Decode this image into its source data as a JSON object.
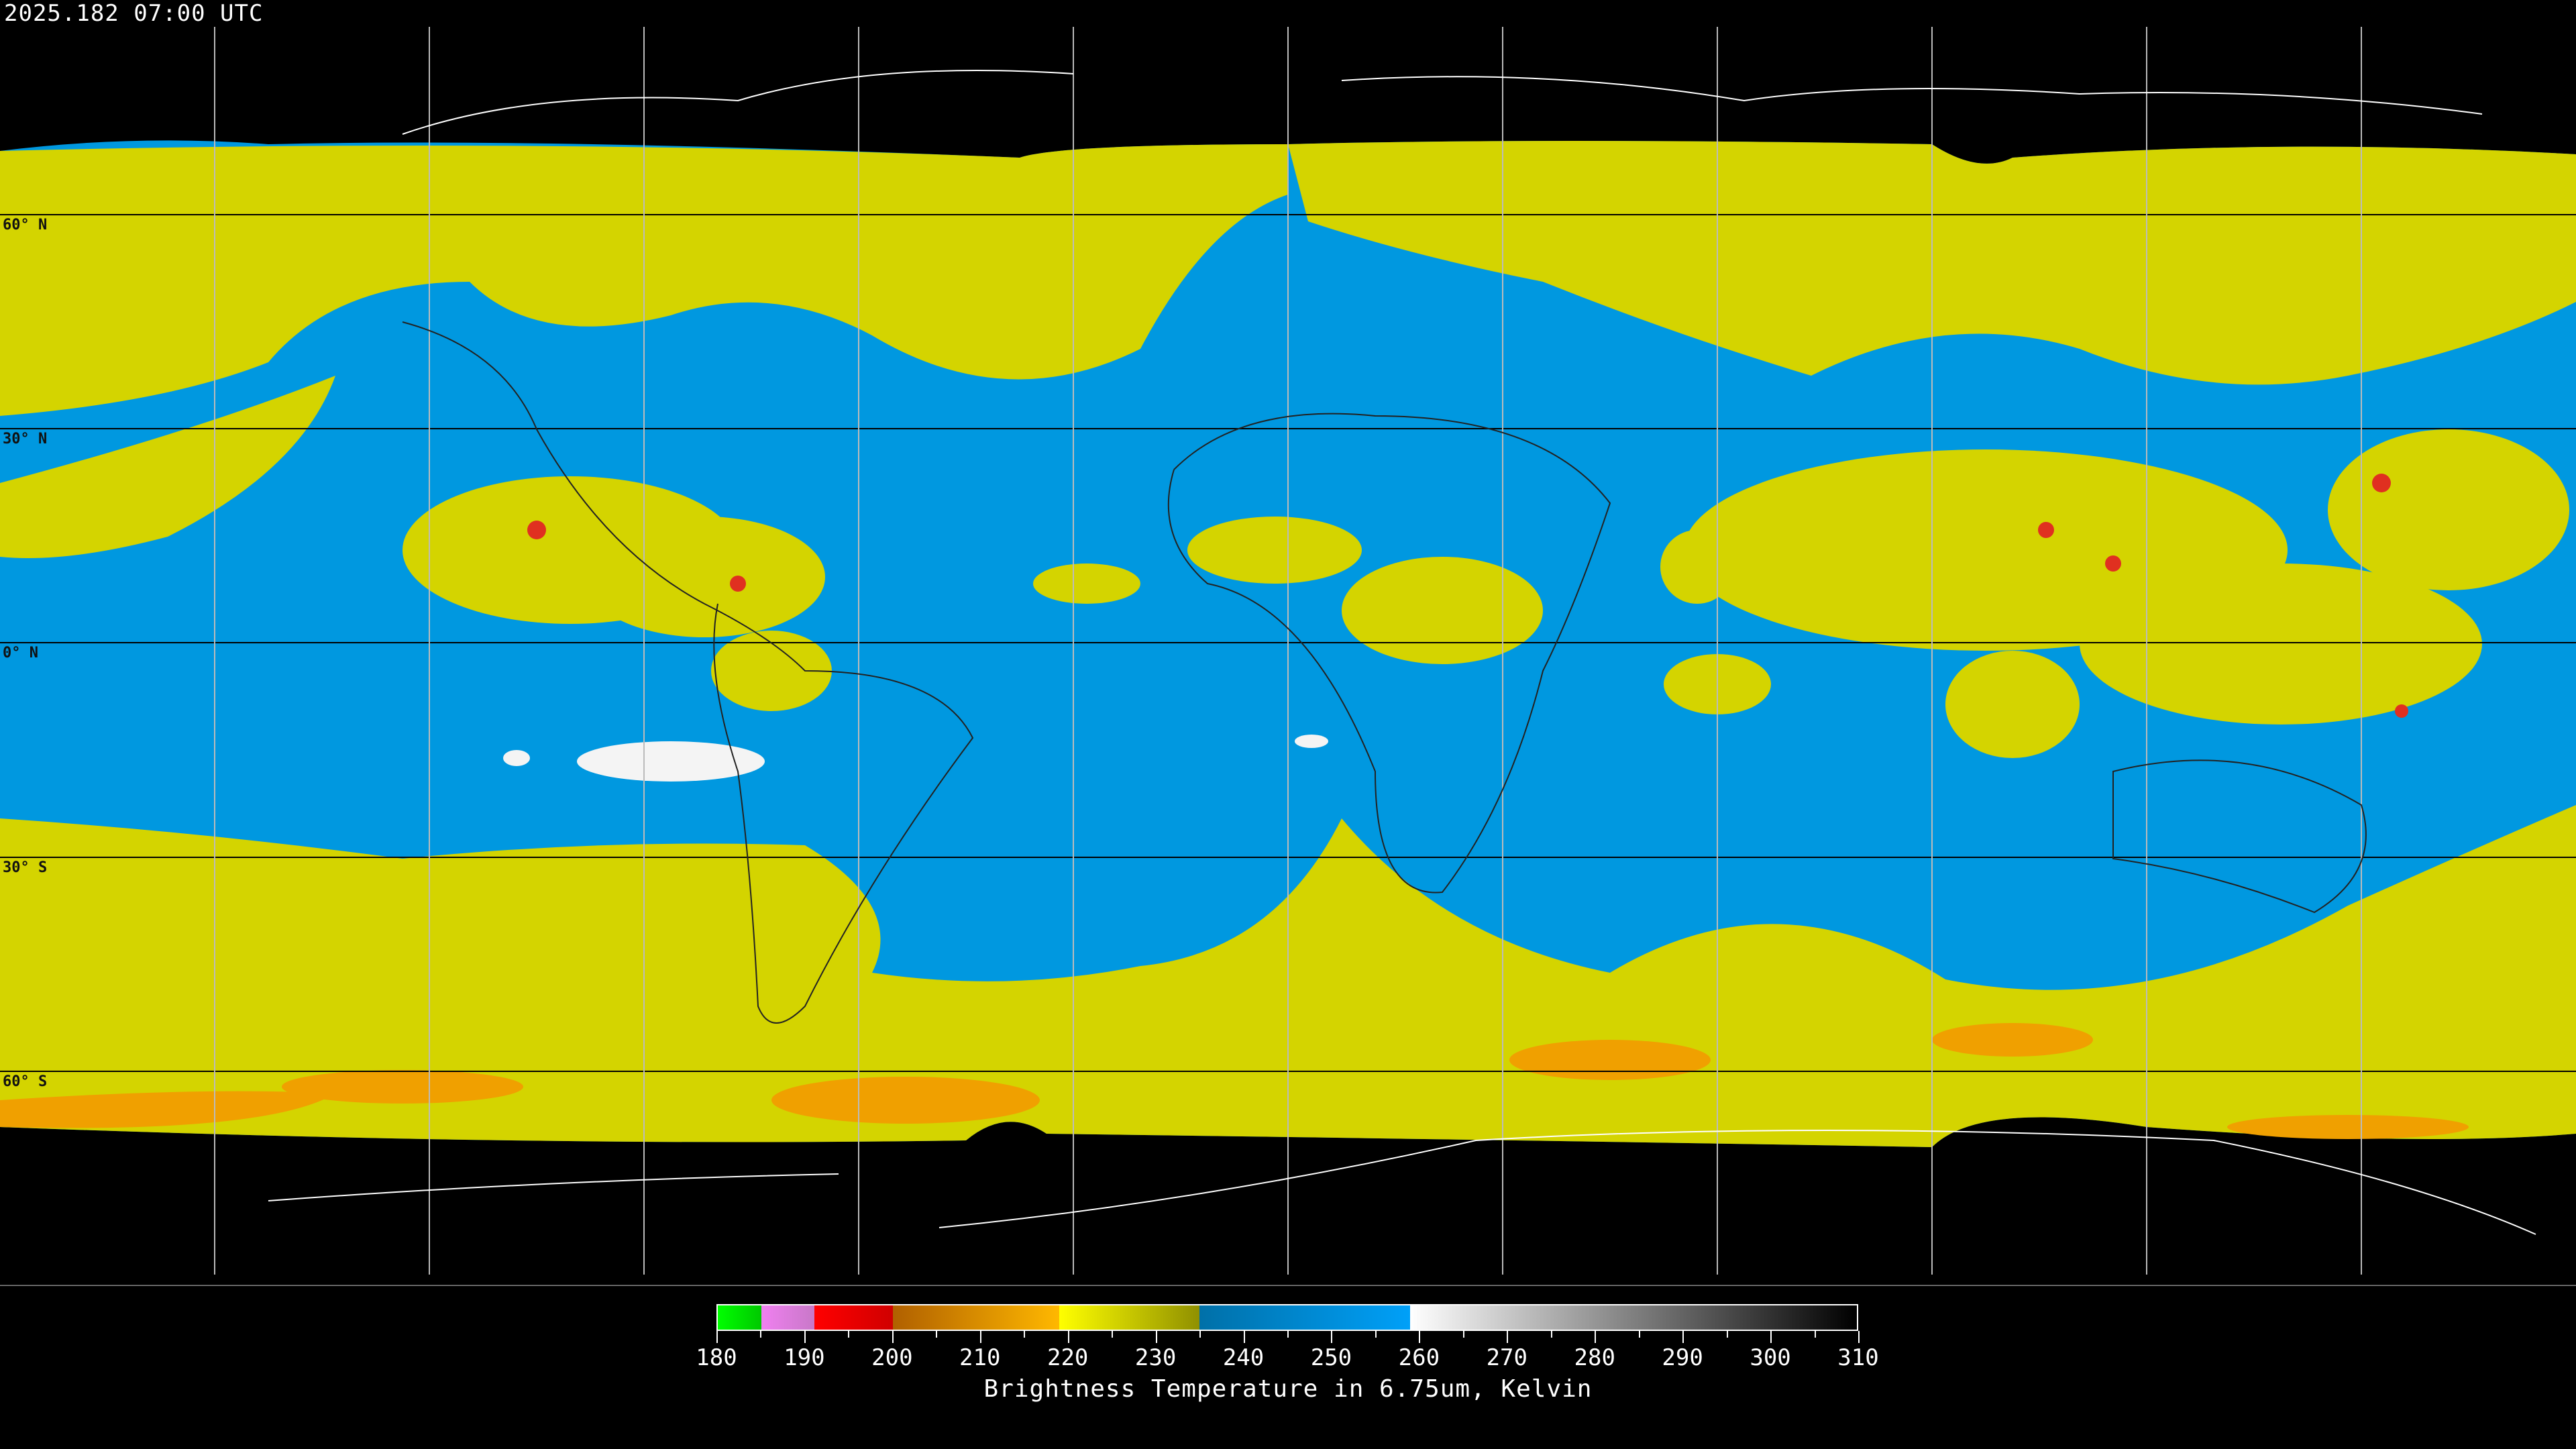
{
  "header": {
    "timestamp": "2025.182 07:00 UTC"
  },
  "map": {
    "projection": "equirectangular",
    "lat_labels": [
      "60° N",
      "30° N",
      "0° N",
      "30° S",
      "60° S"
    ],
    "graticule_spacing_deg": 30,
    "colors": {
      "background": "#000000",
      "clear_sky": "#0098e0",
      "moist_high": "#d8d800",
      "cold": "#f0a000",
      "very_cold": "#e02020",
      "warm_dry": "#ffffff"
    }
  },
  "colorbar": {
    "title": "Brightness Temperature in 6.75um, Kelvin",
    "min": 180,
    "max": 310,
    "tick_labels": [
      "180",
      "190",
      "200",
      "210",
      "220",
      "230",
      "240",
      "250",
      "260",
      "270",
      "280",
      "290",
      "300",
      "310"
    ],
    "segments": [
      {
        "from": 180,
        "to": 185,
        "c1": "#00ff00",
        "c2": "#00c800"
      },
      {
        "from": 185,
        "to": 191,
        "c1": "#f080f0",
        "c2": "#c878c8"
      },
      {
        "from": 191,
        "to": 200,
        "c1": "#ff0000",
        "c2": "#d00000"
      },
      {
        "from": 200,
        "to": 219,
        "c1": "#b06000",
        "c2": "#ffb800"
      },
      {
        "from": 219,
        "to": 235,
        "c1": "#ffff00",
        "c2": "#909000"
      },
      {
        "from": 235,
        "to": 259,
        "c1": "#0070a8",
        "c2": "#00a0f8"
      },
      {
        "from": 259,
        "to": 310,
        "c1": "#ffffff",
        "c2": "#000000"
      }
    ]
  }
}
